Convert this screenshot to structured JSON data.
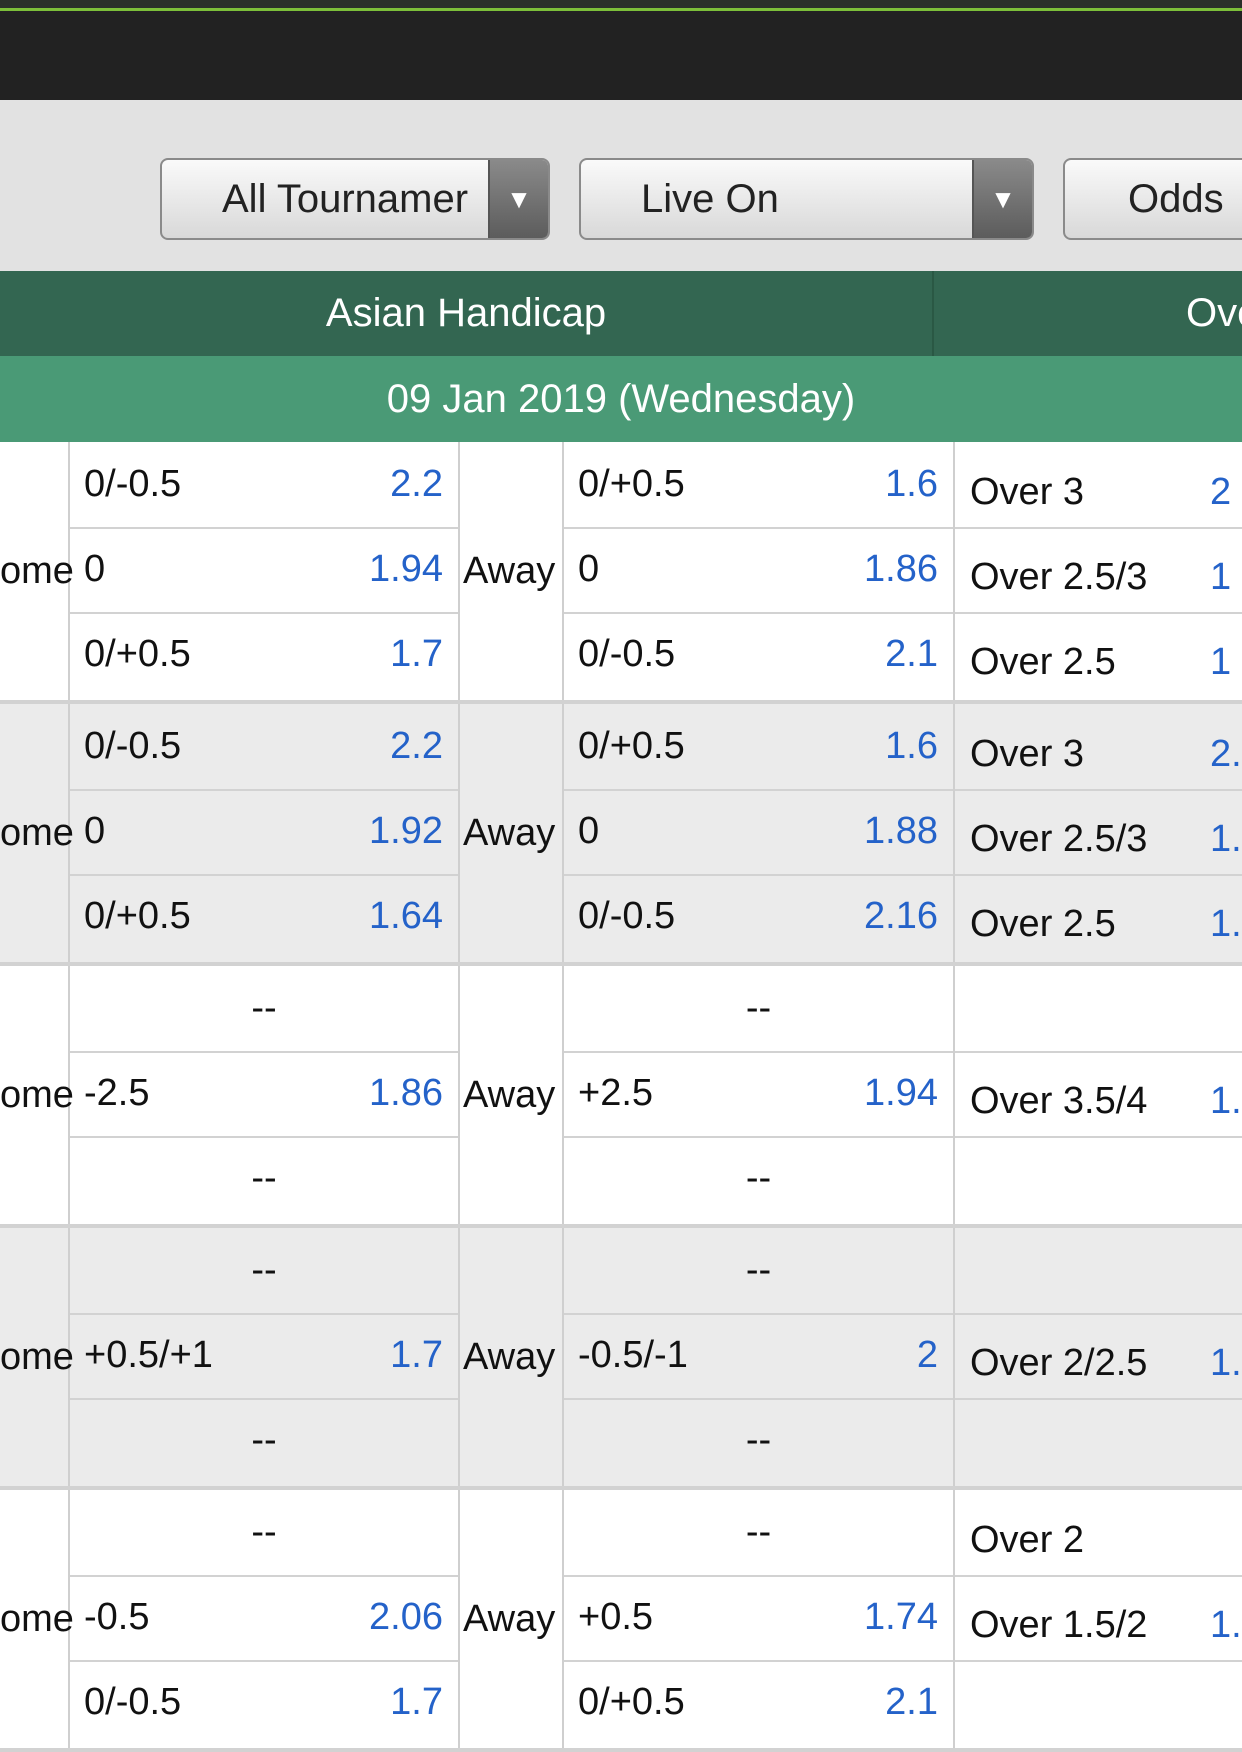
{
  "filters": {
    "tournament": "All Tournamer",
    "live": "Live On",
    "odds": "Odds"
  },
  "market_header": {
    "asian_handicap": "Asian Handicap",
    "over_partial": "Ove"
  },
  "date": "09 Jan 2019 (Wednesday)",
  "matches": [
    {
      "home_label": "ome",
      "away_label": "Away",
      "rows": [
        {
          "h_line": "0/-0.5",
          "h_odd": "2.2",
          "a_line": "0/+0.5",
          "a_odd": "1.6",
          "ou": "Over 3",
          "ou_odd": "2"
        },
        {
          "h_line": "0",
          "h_odd": "1.94",
          "a_line": "0",
          "a_odd": "1.86",
          "ou": "Over 2.5/3",
          "ou_odd": "1"
        },
        {
          "h_line": "0/+0.5",
          "h_odd": "1.7",
          "a_line": "0/-0.5",
          "a_odd": "2.1",
          "ou": "Over 2.5",
          "ou_odd": "1"
        }
      ]
    },
    {
      "home_label": "ome",
      "away_label": "Away",
      "rows": [
        {
          "h_line": "0/-0.5",
          "h_odd": "2.2",
          "a_line": "0/+0.5",
          "a_odd": "1.6",
          "ou": "Over 3",
          "ou_odd": "2."
        },
        {
          "h_line": "0",
          "h_odd": "1.92",
          "a_line": "0",
          "a_odd": "1.88",
          "ou": "Over 2.5/3",
          "ou_odd": "1."
        },
        {
          "h_line": "0/+0.5",
          "h_odd": "1.64",
          "a_line": "0/-0.5",
          "a_odd": "2.16",
          "ou": "Over 2.5",
          "ou_odd": "1."
        }
      ]
    },
    {
      "home_label": "ome",
      "away_label": "Away",
      "rows": [
        {
          "h_dash": "--",
          "a_dash": "--",
          "ou": "",
          "ou_odd": ""
        },
        {
          "h_line": "-2.5",
          "h_odd": "1.86",
          "a_line": "+2.5",
          "a_odd": "1.94",
          "ou": "Over 3.5/4",
          "ou_odd": "1."
        },
        {
          "h_dash": "--",
          "a_dash": "--",
          "ou": "",
          "ou_odd": ""
        }
      ]
    },
    {
      "home_label": "ome",
      "away_label": "Away",
      "rows": [
        {
          "h_dash": "--",
          "a_dash": "--",
          "ou": "",
          "ou_odd": ""
        },
        {
          "h_line": "+0.5/+1",
          "h_odd": "1.7",
          "a_line": "-0.5/-1",
          "a_odd": "2",
          "ou": "Over 2/2.5",
          "ou_odd": "1."
        },
        {
          "h_dash": "--",
          "a_dash": "--",
          "ou": "",
          "ou_odd": ""
        }
      ]
    },
    {
      "home_label": "ome",
      "away_label": "Away",
      "rows": [
        {
          "h_dash": "--",
          "a_dash": "--",
          "ou": "Over 2",
          "ou_odd": ""
        },
        {
          "h_line": "-0.5",
          "h_odd": "2.06",
          "a_line": "+0.5",
          "a_odd": "1.74",
          "ou": "Over 1.5/2",
          "ou_odd": "1."
        },
        {
          "h_line": "0/-0.5",
          "h_odd": "1.7",
          "a_line": "0/+0.5",
          "a_odd": "2.1",
          "ou": "",
          "ou_odd": ""
        }
      ]
    }
  ]
}
